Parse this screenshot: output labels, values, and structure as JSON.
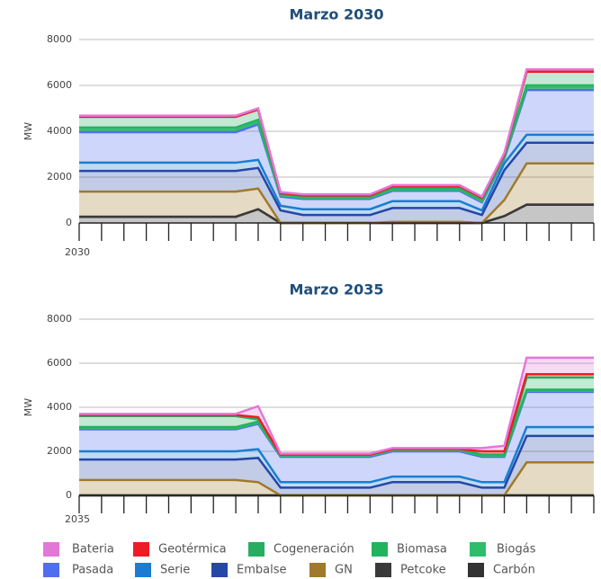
{
  "chart_data": [
    {
      "type": "stacked_area",
      "title": "Marzo 2030",
      "y_label": "MW",
      "categories": [
        "2030",
        null,
        null,
        null,
        null,
        null,
        null,
        null,
        null,
        null,
        null,
        null,
        null,
        null,
        null,
        null,
        null,
        null,
        null,
        null,
        null,
        null,
        null,
        null
      ],
      "ylim": [
        0,
        8000
      ],
      "yticks": [
        0,
        2000,
        4000,
        6000,
        8000
      ],
      "grid": true,
      "series": [
        {
          "name": "Bateria",
          "color": "#e377d8",
          "values": [
            50,
            50,
            50,
            50,
            50,
            50,
            50,
            50,
            50,
            50,
            50,
            50,
            50,
            50,
            50,
            50,
            50,
            50,
            50,
            50,
            100,
            100,
            100,
            100
          ]
        },
        {
          "name": "Geotérmica",
          "color": "#ee1c25",
          "values": [
            0,
            0,
            0,
            0,
            0,
            0,
            0,
            0,
            0,
            0,
            0,
            0,
            0,
            0,
            0,
            0,
            0,
            0,
            0,
            0,
            0,
            0,
            0,
            0
          ]
        },
        {
          "name": "Cogeneración",
          "color": "#27ae60",
          "values": [
            470,
            470,
            470,
            470,
            470,
            470,
            470,
            470,
            450,
            50,
            50,
            50,
            50,
            50,
            100,
            100,
            100,
            100,
            100,
            100,
            600,
            600,
            600,
            600
          ]
        },
        {
          "name": "Biomasa",
          "color": "#22b35e",
          "values": [
            100,
            100,
            100,
            100,
            100,
            100,
            100,
            100,
            100,
            50,
            50,
            50,
            50,
            50,
            50,
            50,
            50,
            50,
            50,
            50,
            100,
            100,
            100,
            100
          ]
        },
        {
          "name": "Biogás",
          "color": "#2ebd6b",
          "values": [
            100,
            100,
            100,
            100,
            100,
            100,
            100,
            100,
            100,
            50,
            50,
            50,
            50,
            50,
            50,
            50,
            50,
            50,
            50,
            50,
            100,
            100,
            100,
            100
          ]
        },
        {
          "name": "Pasada",
          "color": "#4f6ef0",
          "values": [
            1330,
            1330,
            1330,
            1330,
            1330,
            1330,
            1330,
            1330,
            1550,
            400,
            450,
            450,
            450,
            450,
            450,
            450,
            450,
            450,
            350,
            200,
            1950,
            1950,
            1950,
            1950
          ]
        },
        {
          "name": "Serie",
          "color": "#1a7dd1",
          "values": [
            360,
            360,
            360,
            360,
            360,
            360,
            360,
            360,
            350,
            200,
            250,
            250,
            250,
            250,
            300,
            300,
            300,
            300,
            200,
            300,
            350,
            350,
            350,
            350
          ]
        },
        {
          "name": "Embalse",
          "color": "#2547a8",
          "values": [
            900,
            900,
            900,
            900,
            900,
            900,
            900,
            900,
            900,
            550,
            350,
            350,
            350,
            350,
            600,
            600,
            600,
            600,
            350,
            1300,
            900,
            900,
            900,
            900
          ]
        },
        {
          "name": "GN",
          "color": "#a07a2a",
          "values": [
            1100,
            1100,
            1100,
            1100,
            1100,
            1100,
            1100,
            1100,
            900,
            0,
            0,
            0,
            0,
            0,
            50,
            50,
            50,
            50,
            0,
            700,
            1800,
            1800,
            1800,
            1800
          ]
        },
        {
          "name": "Petcoke",
          "color": "#3a3a3a",
          "values": [
            0,
            0,
            0,
            0,
            0,
            0,
            0,
            0,
            0,
            0,
            0,
            0,
            0,
            0,
            0,
            0,
            0,
            0,
            0,
            0,
            0,
            0,
            0,
            0
          ]
        },
        {
          "name": "Carbón",
          "color": "#333333",
          "values": [
            270,
            270,
            270,
            270,
            270,
            270,
            270,
            270,
            600,
            0,
            0,
            0,
            0,
            0,
            0,
            0,
            0,
            0,
            0,
            300,
            800,
            800,
            800,
            800
          ]
        }
      ]
    },
    {
      "type": "stacked_area",
      "title": "Marzo 2035",
      "y_label": "MW",
      "categories": [
        "2035",
        null,
        null,
        null,
        null,
        null,
        null,
        null,
        null,
        null,
        null,
        null,
        null,
        null,
        null,
        null,
        null,
        null,
        null,
        null,
        null,
        null,
        null,
        null
      ],
      "ylim": [
        0,
        8000
      ],
      "yticks": [
        0,
        2000,
        4000,
        6000,
        8000
      ],
      "grid": true,
      "series": [
        {
          "name": "Bateria",
          "color": "#e377d8",
          "values": [
            50,
            50,
            50,
            50,
            50,
            50,
            50,
            50,
            500,
            50,
            50,
            50,
            50,
            50,
            50,
            50,
            50,
            50,
            150,
            250,
            750,
            750,
            750,
            750
          ]
        },
        {
          "name": "Geotérmica",
          "color": "#ee1c25",
          "values": [
            50,
            50,
            50,
            50,
            50,
            50,
            50,
            50,
            100,
            0,
            0,
            0,
            0,
            0,
            0,
            0,
            0,
            0,
            150,
            150,
            150,
            150,
            150,
            150
          ]
        },
        {
          "name": "Cogeneración",
          "color": "#27ae60",
          "values": [
            500,
            500,
            500,
            500,
            500,
            500,
            500,
            500,
            100,
            0,
            0,
            0,
            0,
            0,
            0,
            0,
            0,
            0,
            0,
            0,
            550,
            550,
            550,
            550
          ]
        },
        {
          "name": "Biomasa",
          "color": "#22b35e",
          "values": [
            50,
            50,
            50,
            50,
            50,
            50,
            50,
            50,
            50,
            50,
            50,
            50,
            50,
            50,
            50,
            50,
            50,
            50,
            50,
            50,
            50,
            50,
            50,
            50
          ]
        },
        {
          "name": "Biogás",
          "color": "#2ebd6b",
          "values": [
            50,
            50,
            50,
            50,
            50,
            50,
            50,
            50,
            50,
            50,
            50,
            50,
            50,
            50,
            50,
            50,
            50,
            50,
            50,
            50,
            50,
            50,
            50,
            50
          ]
        },
        {
          "name": "Pasada",
          "color": "#4f6ef0",
          "values": [
            1000,
            1000,
            1000,
            1000,
            1000,
            1000,
            1000,
            1000,
            1150,
            1150,
            1150,
            1150,
            1150,
            1150,
            1150,
            1150,
            1150,
            1150,
            1150,
            1150,
            1600,
            1600,
            1600,
            1600
          ]
        },
        {
          "name": "Serie",
          "color": "#1a7dd1",
          "values": [
            370,
            370,
            370,
            370,
            370,
            370,
            370,
            370,
            400,
            250,
            250,
            250,
            250,
            250,
            250,
            250,
            250,
            250,
            250,
            250,
            400,
            400,
            400,
            400
          ]
        },
        {
          "name": "Embalse",
          "color": "#2547a8",
          "values": [
            930,
            930,
            930,
            930,
            930,
            930,
            930,
            930,
            1100,
            350,
            350,
            350,
            350,
            350,
            600,
            600,
            600,
            600,
            350,
            350,
            1200,
            1200,
            1200,
            1200
          ]
        },
        {
          "name": "GN",
          "color": "#a07a2a",
          "values": [
            700,
            700,
            700,
            700,
            700,
            700,
            700,
            700,
            600,
            0,
            0,
            0,
            0,
            0,
            0,
            0,
            0,
            0,
            0,
            0,
            1500,
            1500,
            1500,
            1500
          ]
        },
        {
          "name": "Petcoke",
          "color": "#3a3a3a",
          "values": [
            0,
            0,
            0,
            0,
            0,
            0,
            0,
            0,
            0,
            0,
            0,
            0,
            0,
            0,
            0,
            0,
            0,
            0,
            0,
            0,
            0,
            0,
            0,
            0
          ]
        },
        {
          "name": "Carbón",
          "color": "#333333",
          "values": [
            0,
            0,
            0,
            0,
            0,
            0,
            0,
            0,
            0,
            0,
            0,
            0,
            0,
            0,
            0,
            0,
            0,
            0,
            0,
            0,
            0,
            0,
            0,
            0
          ]
        }
      ]
    }
  ]
}
